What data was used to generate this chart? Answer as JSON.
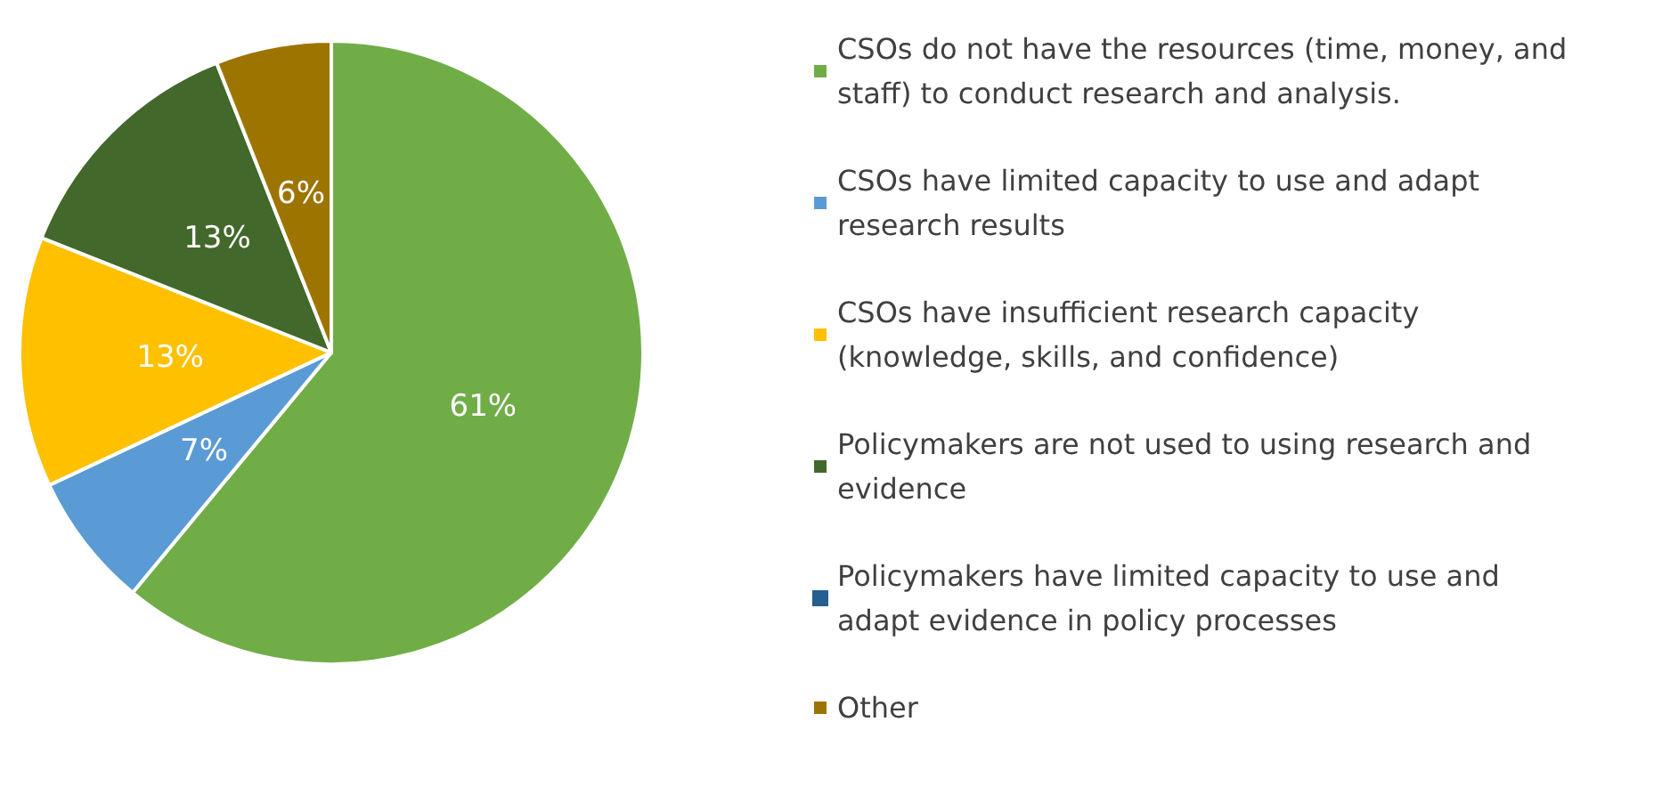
{
  "chart_data": {
    "type": "pie",
    "categories": [
      "CSOs do not have the resources (time, money, and staff) to conduct research and analysis.",
      "CSOs have limited capacity to use and adapt research results",
      "CSOs have insufficient research capacity (knowledge, skills, and confidence)",
      "Policymakers are not used to using research and evidence",
      "Policymakers have limited capacity to use and adapt evidence in policy processes",
      "Other"
    ],
    "values": [
      61,
      7,
      13,
      13,
      0,
      6
    ],
    "value_labels": [
      "61%",
      "7%",
      "13%",
      "13%",
      null,
      "6%"
    ],
    "colors": [
      "#70ad47",
      "#5b9bd5",
      "#ffc000",
      "#43682b",
      "#255e91",
      "#9e7400"
    ],
    "legend": "right"
  }
}
